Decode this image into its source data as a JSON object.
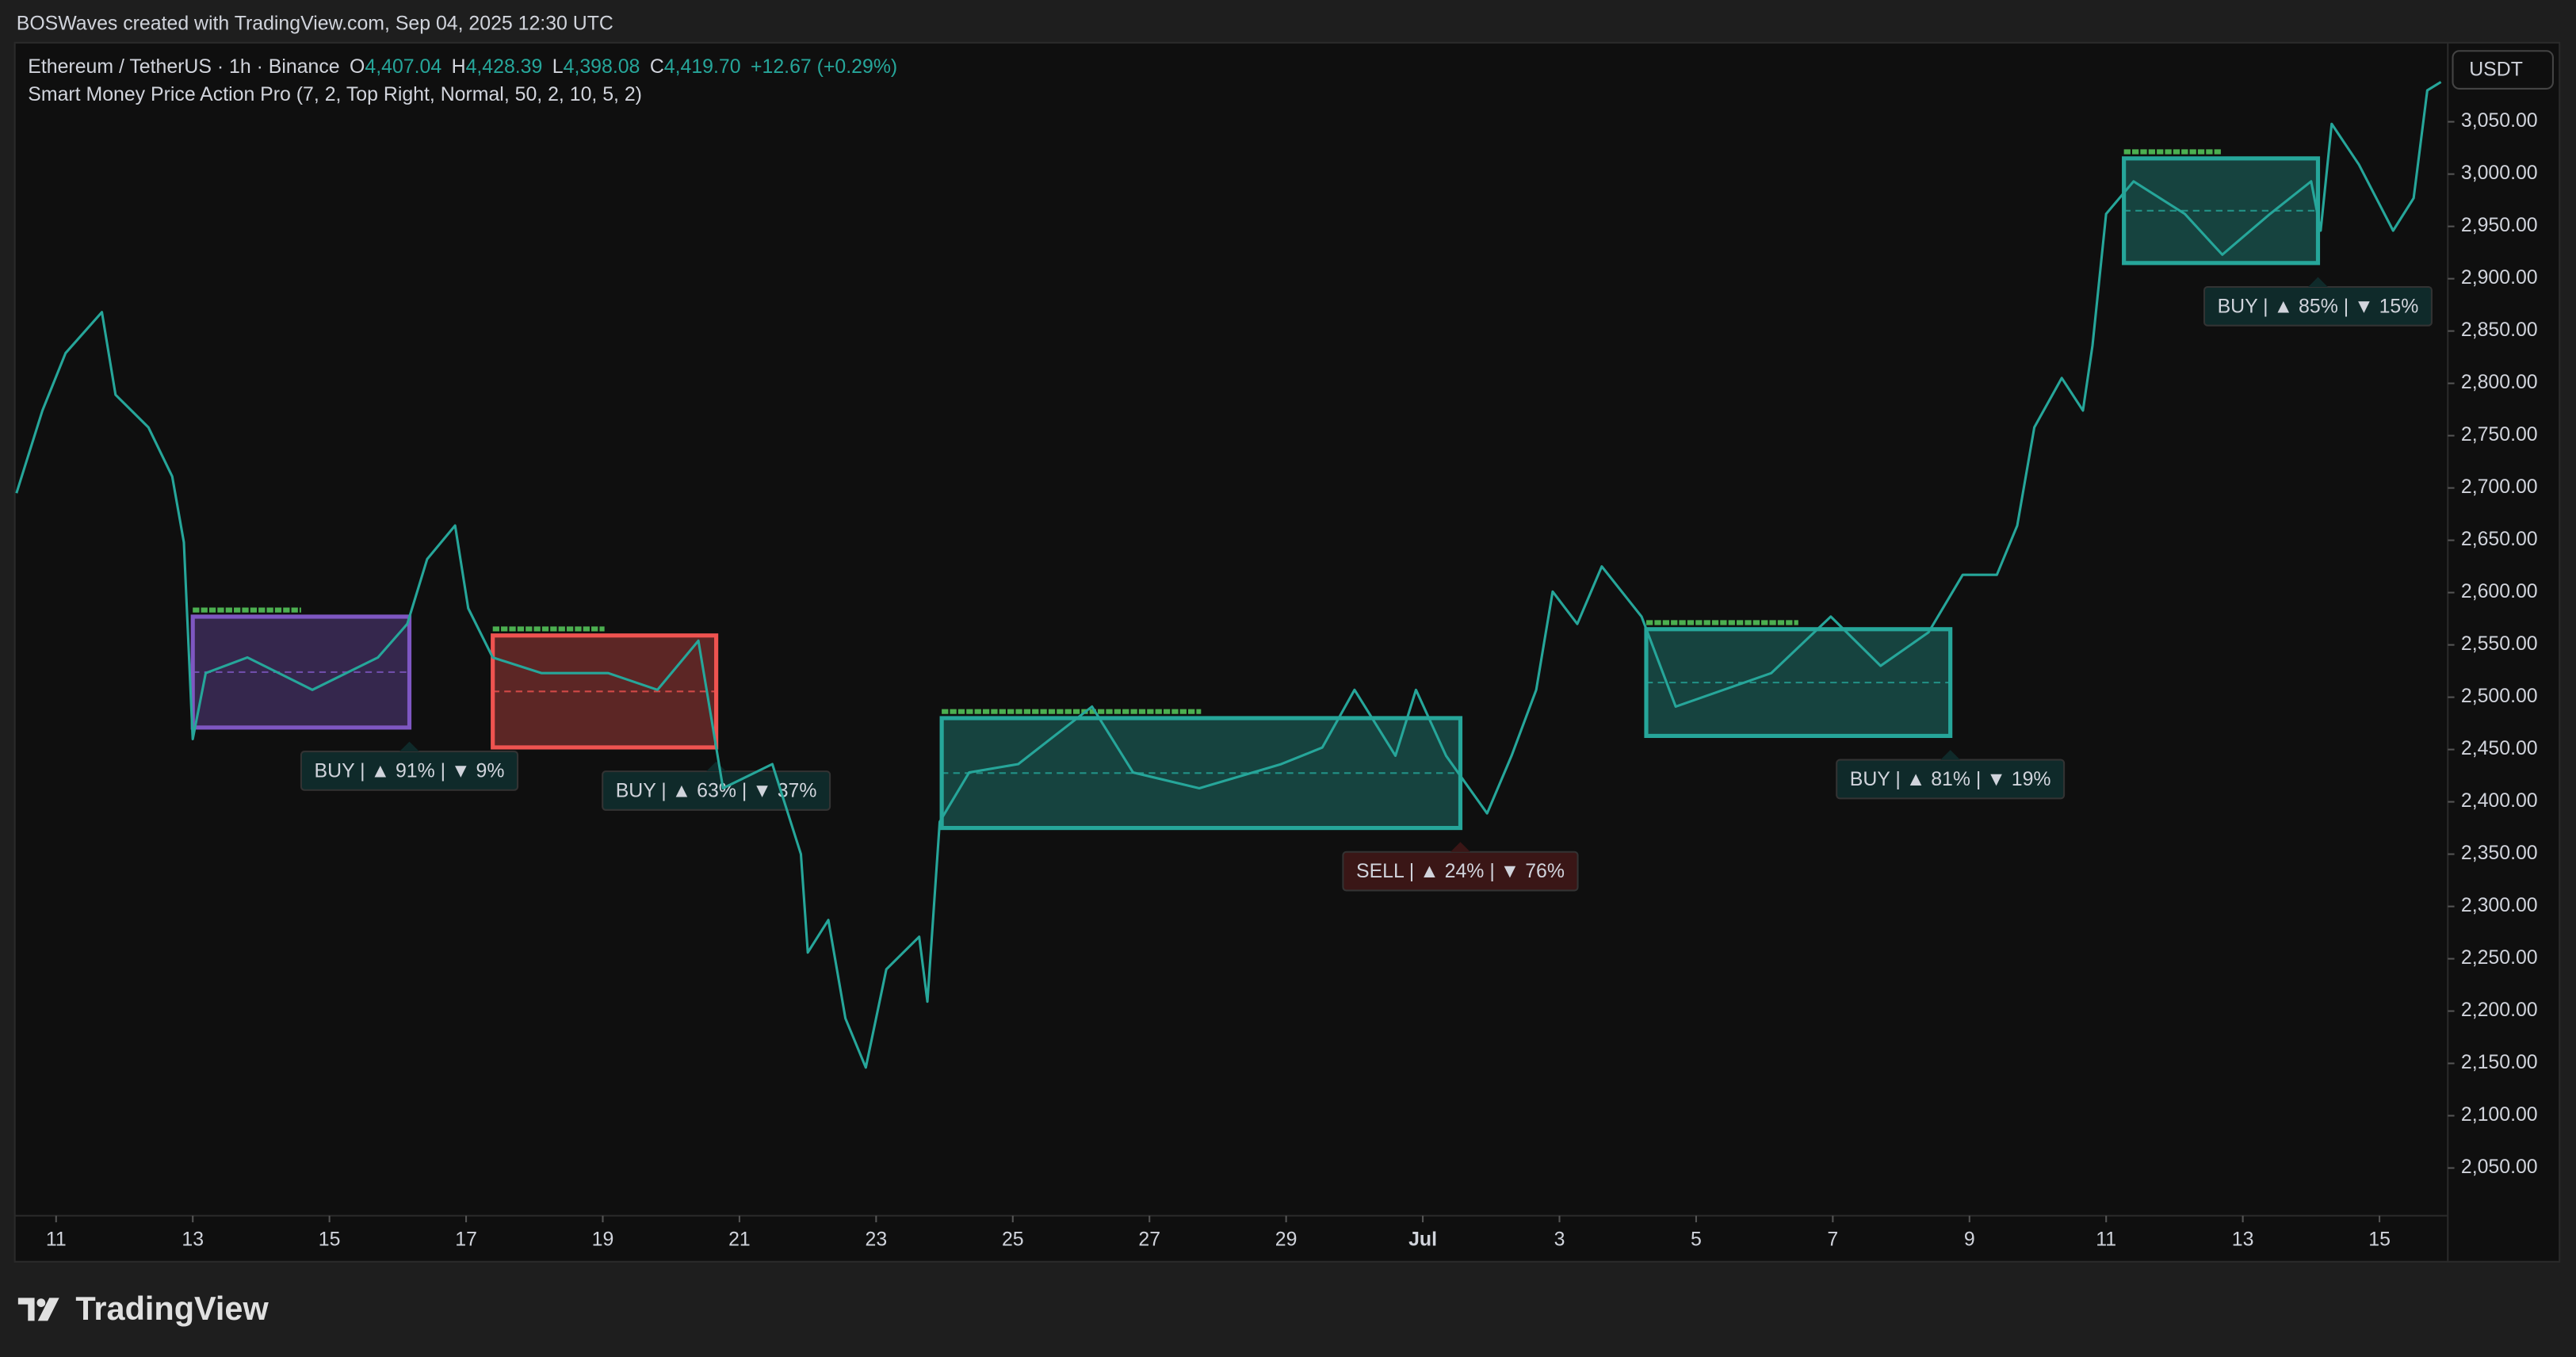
{
  "header": {
    "credit": "BOSWaves created with TradingView.com, Sep 04, 2025 12:30 UTC",
    "symbol": "Ethereum / TetherUS · 1h · Binance",
    "ohlc": [
      {
        "label": "O",
        "value": "4,407.04"
      },
      {
        "label": "H",
        "value": "4,428.39"
      },
      {
        "label": "L",
        "value": "4,398.08"
      },
      {
        "label": "C",
        "value": "4,419.70"
      }
    ],
    "change": "+12.67 (+0.29%)",
    "indicator": "Smart Money Price Action Pro (7, 2, Top Right, Normal, 50, 2, 10, 5, 2)"
  },
  "chart_data": {
    "type": "line",
    "currency": "USDT",
    "color": "#26a69a",
    "x": [
      10.42,
      10.8,
      11.14,
      11.67,
      11.87,
      12.35,
      12.7,
      12.87,
      13.0,
      13.19,
      13.8,
      14.75,
      15.71,
      16.14,
      16.43,
      16.84,
      17.03,
      17.39,
      18.1,
      19.08,
      19.8,
      20.4,
      20.76,
      21.48,
      21.9,
      22.0,
      22.3,
      22.55,
      22.85,
      23.15,
      23.63,
      23.75,
      23.93,
      24.36,
      25.08,
      26.16,
      26.76,
      27.73,
      28.93,
      29.53,
      30.0,
      30.6,
      30.9,
      31.34,
      31.94,
      32.3,
      32.66,
      32.9,
      33.26,
      33.62,
      34.2,
      34.7,
      35.4,
      36.1,
      36.97,
      37.7,
      38.4,
      38.9,
      39.4,
      39.7,
      39.95,
      40.35,
      40.66,
      40.8,
      41.0,
      41.4,
      42.15,
      42.7,
      43.4,
      44.0,
      44.14,
      44.3,
      44.7,
      45.2,
      45.5,
      45.7,
      45.9
    ],
    "values": [
      2695,
      2774,
      2829,
      2868,
      2789,
      2758,
      2711,
      2648,
      2460,
      2523,
      2538,
      2507,
      2538,
      2570,
      2632,
      2664,
      2585,
      2538,
      2523,
      2523,
      2507,
      2554,
      2413,
      2436,
      2350,
      2256,
      2287,
      2193,
      2146,
      2240,
      2271,
      2209,
      2381,
      2428,
      2436,
      2491,
      2428,
      2413,
      2436,
      2452,
      2507,
      2444,
      2507,
      2444,
      2389,
      2444,
      2507,
      2601,
      2570,
      2625,
      2577,
      2491,
      2507,
      2523,
      2577,
      2530,
      2562,
      2617,
      2617,
      2664,
      2758,
      2805,
      2774,
      2836,
      2962,
      2993,
      2962,
      2923,
      2962,
      2993,
      2946,
      3048,
      3009,
      2946,
      2977,
      3080,
      3088
    ],
    "xlim": [
      10.42,
      46
    ],
    "xticks": [
      11,
      13,
      15,
      17,
      19,
      21,
      23,
      25,
      27,
      29,
      {
        "value": 31,
        "label": "Jul"
      },
      {
        "value": 33,
        "label": "3"
      },
      {
        "value": 35,
        "label": "5"
      },
      {
        "value": 37,
        "label": "7"
      },
      {
        "value": 39,
        "label": "9"
      },
      {
        "value": 41,
        "label": "11"
      },
      {
        "value": 43,
        "label": "13"
      },
      {
        "value": 45,
        "label": "15"
      }
    ],
    "ylim": [
      1962,
      3124
    ],
    "yticks": [
      {
        "value": 2050,
        "label": "2,050.00"
      },
      {
        "value": 2100,
        "label": "2,100.00"
      },
      {
        "value": 2150,
        "label": "2,150.00"
      },
      {
        "value": 2200,
        "label": "2,200.00"
      },
      {
        "value": 2250,
        "label": "2,250.00"
      },
      {
        "value": 2300,
        "label": "2,300.00"
      },
      {
        "value": 2350,
        "label": "2,350.00"
      },
      {
        "value": 2400,
        "label": "2,400.00"
      },
      {
        "value": 2450,
        "label": "2,450.00"
      },
      {
        "value": 2500,
        "label": "2,500.00"
      },
      {
        "value": 2550,
        "label": "2,550.00"
      },
      {
        "value": 2600,
        "label": "2,600.00"
      },
      {
        "value": 2650,
        "label": "2,650.00"
      },
      {
        "value": 2700,
        "label": "2,700.00"
      },
      {
        "value": 2750,
        "label": "2,750.00"
      },
      {
        "value": 2800,
        "label": "2,800.00"
      },
      {
        "value": 2850,
        "label": "2,850.00"
      },
      {
        "value": 2900,
        "label": "2,900.00"
      },
      {
        "value": 2950,
        "label": "2,950.00"
      },
      {
        "value": 3000,
        "label": "3,000.00"
      },
      {
        "value": 3050,
        "label": "3,050.00"
      }
    ],
    "zones": [
      {
        "x": [
          13.0,
          16.17
        ],
        "y": [
          2577,
          2471
        ],
        "color": "#7e57c2",
        "label": "BUY | ▲ 91% | ▼ 9%",
        "label_color": "#0f2a2a"
      },
      {
        "x": [
          17.39,
          20.66
        ],
        "y": [
          2559,
          2452
        ],
        "color": "#ef5350",
        "label": "BUY | ▲ 63% | ▼ 37%",
        "label_color": "#0f2a2a"
      },
      {
        "x": [
          23.96,
          31.55
        ],
        "y": [
          2480,
          2375
        ],
        "color": "#26a69a",
        "label": "SELL | ▲ 24% | ▼ 76%",
        "label_color": "#3a1616"
      },
      {
        "x": [
          34.27,
          38.72
        ],
        "y": [
          2565,
          2463
        ],
        "color": "#26a69a",
        "label": "BUY | ▲ 81% | ▼ 19%",
        "label_color": "#0f2a2a"
      },
      {
        "x": [
          41.26,
          44.1
        ],
        "y": [
          3015,
          2915
        ],
        "color": "#26a69a",
        "label": "BUY | ▲ 85% | ▼ 15%",
        "label_color": "#0f2a2a"
      }
    ]
  },
  "footer": {
    "brand": "TradingView"
  }
}
